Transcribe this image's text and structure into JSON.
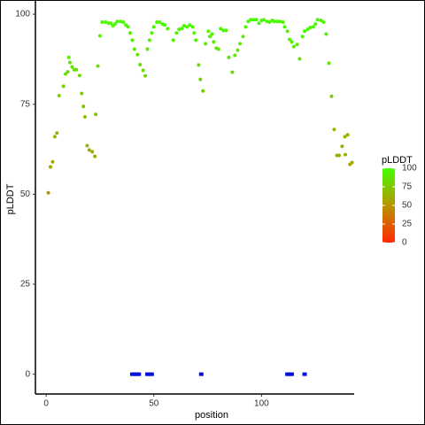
{
  "chart_data": {
    "type": "scatter",
    "xlabel": "position",
    "ylabel": "pLDDT",
    "xlim": [
      -5,
      143
    ],
    "ylim": [
      -5.5,
      101.5
    ],
    "xticks": [
      0,
      50,
      100
    ],
    "yticks": [
      0,
      25,
      50,
      75,
      100
    ],
    "grid": false,
    "colorscale": {
      "title": "pLDDT",
      "limits": [
        0,
        100
      ],
      "ticks": [
        0,
        25,
        50,
        75,
        100
      ],
      "colors": [
        "#ff2a00",
        "#b89400",
        "#44ff00"
      ]
    },
    "series": [
      {
        "colorscale": true,
        "x": [
          1,
          2,
          3,
          4,
          5,
          6,
          8,
          9,
          10,
          10.5,
          11,
          12,
          13,
          14,
          15.5,
          16.5,
          17.3,
          18,
          19,
          20,
          21.4,
          22.6,
          23,
          24,
          25,
          26,
          27.6,
          29,
          30,
          31,
          32,
          33,
          34.5,
          35.8,
          37,
          38,
          39,
          40,
          41,
          42.4,
          43.6,
          45,
          46,
          47,
          48,
          49,
          50,
          51.4,
          52.7,
          54,
          55,
          56.4,
          59,
          60.5,
          61.7,
          63,
          64,
          65.4,
          66.7,
          68,
          68.7,
          69.5,
          70.8,
          71.6,
          72.8,
          74,
          75.3,
          76,
          77,
          77.8,
          79,
          80,
          81,
          82.3,
          83.5,
          84.8,
          86.4,
          87.6,
          88.9,
          90,
          91.4,
          92.6,
          93.8,
          95,
          96.3,
          97.5,
          98.8,
          100,
          101,
          102.5,
          103.7,
          105,
          106,
          107.4,
          108.6,
          110,
          110.7,
          112,
          113,
          114,
          115,
          116.5,
          117.7,
          119,
          120,
          121.4,
          122.6,
          124,
          125,
          126,
          127.6,
          128.8,
          130,
          131.3,
          132.5,
          133.7,
          135,
          136,
          137.4,
          138.7,
          138.9,
          140,
          141,
          142
        ],
        "values": [
          50.4,
          57.6,
          59,
          66,
          67,
          77.4,
          80,
          83.4,
          84,
          88,
          86.6,
          85.4,
          84.6,
          84.6,
          83,
          78,
          74.4,
          71.5,
          63.5,
          62.3,
          61.8,
          60.5,
          72.2,
          85.6,
          94,
          97.8,
          97.8,
          97.5,
          97.5,
          96.8,
          97.3,
          98,
          98,
          97.8,
          97,
          96.5,
          94.8,
          92.8,
          90.3,
          88.8,
          86,
          84.4,
          82.9,
          90.3,
          92.8,
          94.8,
          96.5,
          97.8,
          97.8,
          97.3,
          97,
          96,
          92.8,
          94.8,
          95.8,
          96,
          96.8,
          96.5,
          97,
          96.5,
          94.8,
          92.8,
          85.9,
          81.9,
          78.7,
          91.8,
          95.3,
          93.8,
          94.5,
          92.3,
          90.6,
          90.3,
          96,
          95.5,
          95.5,
          88,
          83.9,
          88.6,
          90,
          91.8,
          93.8,
          96.5,
          98,
          98.5,
          98.5,
          98.5,
          97.5,
          98.3,
          98.5,
          98,
          97.8,
          98.3,
          98,
          98,
          98,
          97.8,
          96.5,
          95.3,
          93,
          92.3,
          91,
          91.6,
          87.6,
          93.8,
          95.3,
          95.8,
          96.3,
          96.5,
          97.3,
          98.5,
          98.3,
          97.8,
          94.5,
          86.4,
          77.2,
          68,
          60.8,
          60.8,
          63.3,
          66,
          61,
          66.5,
          58.3,
          58.8
        ]
      },
      {
        "color": "#0010e0",
        "x": [
          40,
          41,
          42,
          43,
          47,
          48,
          49,
          72,
          112,
          113,
          114,
          120
        ],
        "values": [
          0,
          0,
          0,
          0,
          0,
          0,
          0,
          0,
          0,
          0,
          0,
          0
        ]
      }
    ]
  }
}
